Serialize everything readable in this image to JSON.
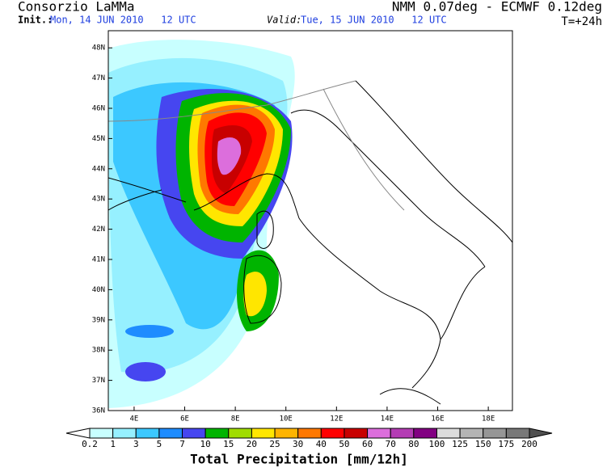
{
  "header": {
    "source": "Consorzio LaMMa",
    "model": "NMM 0.07deg - ECMWF 0.12deg",
    "init_label": "Init.:",
    "init_time": "Mon, 14 JUN 2010   12 UTC",
    "valid_label": "Valid:",
    "valid_time": "Tue, 15 JUN 2010   12 UTC",
    "lead_time": "T=+24h"
  },
  "map": {
    "lat_ticks": [
      {
        "value": 36,
        "label": "36N"
      },
      {
        "value": 37,
        "label": "37N"
      },
      {
        "value": 38,
        "label": "38N"
      },
      {
        "value": 39,
        "label": "39N"
      },
      {
        "value": 40,
        "label": "40N"
      },
      {
        "value": 41,
        "label": "41N"
      },
      {
        "value": 42,
        "label": "42N"
      },
      {
        "value": 43,
        "label": "43N"
      },
      {
        "value": 44,
        "label": "44N"
      },
      {
        "value": 45,
        "label": "45N"
      },
      {
        "value": 46,
        "label": "46N"
      },
      {
        "value": 47,
        "label": "47N"
      },
      {
        "value": 48,
        "label": "48N"
      }
    ],
    "lon_ticks": [
      {
        "value": 4,
        "label": "4E"
      },
      {
        "value": 6,
        "label": "6E"
      },
      {
        "value": 8,
        "label": "8E"
      },
      {
        "value": 10,
        "label": "10E"
      },
      {
        "value": 12,
        "label": "12E"
      },
      {
        "value": 14,
        "label": "14E"
      },
      {
        "value": 16,
        "label": "16E"
      },
      {
        "value": 18,
        "label": "18E"
      }
    ]
  },
  "colorbar": {
    "title": "Total Precipitation [mm/12h]",
    "levels": [
      0.2,
      1,
      3,
      5,
      7,
      10,
      15,
      20,
      25,
      30,
      40,
      50,
      60,
      70,
      80,
      100,
      125,
      150,
      175,
      200
    ],
    "colors": [
      "#ffffff",
      "#c8ffff",
      "#96f0ff",
      "#3cc8ff",
      "#1e8cff",
      "#4646f0",
      "#00b400",
      "#a0dc00",
      "#ffe600",
      "#ffb400",
      "#ff7800",
      "#ff0000",
      "#c80000",
      "#dc6edc",
      "#b43cb4",
      "#820082",
      "#dcdcdc",
      "#b4b4b4",
      "#969696",
      "#787878",
      "#505050"
    ]
  }
}
